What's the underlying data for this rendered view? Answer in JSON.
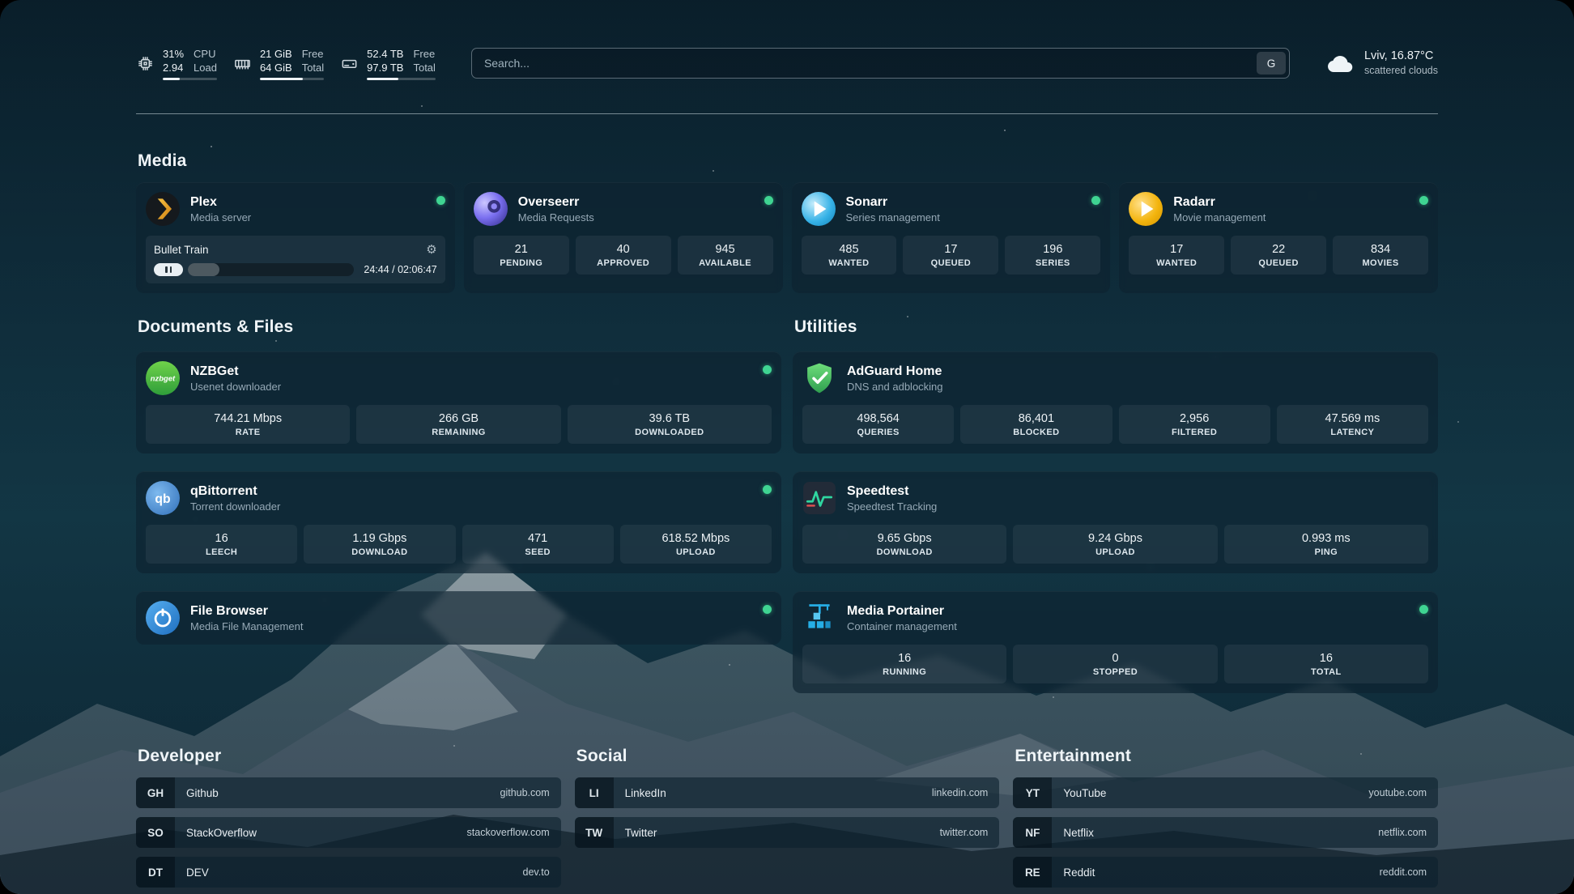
{
  "topbar": {
    "cpu": {
      "value_top": "31%",
      "value_bottom": "2.94",
      "label_top": "CPU",
      "label_bottom": "Load",
      "bar_percent": 31
    },
    "ram": {
      "value_top": "21 GiB",
      "value_bottom": "64 GiB",
      "label_top": "Free",
      "label_bottom": "Total",
      "bar_percent": 67
    },
    "disk": {
      "value_top": "52.4 TB",
      "value_bottom": "97.9 TB",
      "label_top": "Free",
      "label_bottom": "Total",
      "bar_percent": 46
    },
    "search": {
      "placeholder": "Search...",
      "provider": "G"
    },
    "weather": {
      "location": "Lviv, 16.87°C",
      "condition": "scattered clouds"
    }
  },
  "sections": {
    "media": {
      "title": "Media"
    },
    "documents": {
      "title": "Documents & Files"
    },
    "utilities": {
      "title": "Utilities"
    },
    "developer": {
      "title": "Developer"
    },
    "social": {
      "title": "Social"
    },
    "entertainment": {
      "title": "Entertainment"
    }
  },
  "media_cards": {
    "plex": {
      "name": "Plex",
      "desc": "Media server",
      "online": true,
      "now_playing": "Bullet Train",
      "time": "24:44 / 02:06:47",
      "progress_percent": 19
    },
    "overseerr": {
      "name": "Overseerr",
      "desc": "Media Requests",
      "online": true,
      "stats": [
        {
          "value": "21",
          "label": "PENDING"
        },
        {
          "value": "40",
          "label": "APPROVED"
        },
        {
          "value": "945",
          "label": "AVAILABLE"
        }
      ]
    },
    "sonarr": {
      "name": "Sonarr",
      "desc": "Series management",
      "online": true,
      "stats": [
        {
          "value": "485",
          "label": "WANTED"
        },
        {
          "value": "17",
          "label": "QUEUED"
        },
        {
          "value": "196",
          "label": "SERIES"
        }
      ]
    },
    "radarr": {
      "name": "Radarr",
      "desc": "Movie management",
      "online": true,
      "stats": [
        {
          "value": "17",
          "label": "WANTED"
        },
        {
          "value": "22",
          "label": "QUEUED"
        },
        {
          "value": "834",
          "label": "MOVIES"
        }
      ]
    }
  },
  "documents_cards": {
    "nzbget": {
      "name": "NZBGet",
      "desc": "Usenet downloader",
      "online": true,
      "stats": [
        {
          "value": "744.21 Mbps",
          "label": "RATE"
        },
        {
          "value": "266 GB",
          "label": "REMAINING"
        },
        {
          "value": "39.6 TB",
          "label": "DOWNLOADED"
        }
      ]
    },
    "qbittorrent": {
      "name": "qBittorrent",
      "desc": "Torrent downloader",
      "online": true,
      "stats": [
        {
          "value": "16",
          "label": "LEECH"
        },
        {
          "value": "1.19 Gbps",
          "label": "DOWNLOAD"
        },
        {
          "value": "471",
          "label": "SEED"
        },
        {
          "value": "618.52 Mbps",
          "label": "UPLOAD"
        }
      ]
    },
    "filebrowser": {
      "name": "File Browser",
      "desc": "Media File Management",
      "online": true
    }
  },
  "utilities_cards": {
    "adguard": {
      "name": "AdGuard Home",
      "desc": "DNS and adblocking",
      "stats": [
        {
          "value": "498,564",
          "label": "QUERIES"
        },
        {
          "value": "86,401",
          "label": "BLOCKED"
        },
        {
          "value": "2,956",
          "label": "FILTERED"
        },
        {
          "value": "47.569 ms",
          "label": "LATENCY"
        }
      ]
    },
    "speedtest": {
      "name": "Speedtest",
      "desc": "Speedtest Tracking",
      "stats": [
        {
          "value": "9.65 Gbps",
          "label": "DOWNLOAD"
        },
        {
          "value": "9.24 Gbps",
          "label": "UPLOAD"
        },
        {
          "value": "0.993 ms",
          "label": "PING"
        }
      ]
    },
    "portainer": {
      "name": "Media Portainer",
      "desc": "Container management",
      "online": true,
      "stats": [
        {
          "value": "16",
          "label": "RUNNING"
        },
        {
          "value": "0",
          "label": "STOPPED"
        },
        {
          "value": "16",
          "label": "TOTAL"
        }
      ]
    }
  },
  "bookmarks": {
    "developer": [
      {
        "abbr": "GH",
        "name": "Github",
        "url": "github.com"
      },
      {
        "abbr": "SO",
        "name": "StackOverflow",
        "url": "stackoverflow.com"
      },
      {
        "abbr": "DT",
        "name": "DEV",
        "url": "dev.to"
      }
    ],
    "social": [
      {
        "abbr": "LI",
        "name": "LinkedIn",
        "url": "linkedin.com"
      },
      {
        "abbr": "TW",
        "name": "Twitter",
        "url": "twitter.com"
      }
    ],
    "entertainment": [
      {
        "abbr": "YT",
        "name": "YouTube",
        "url": "youtube.com"
      },
      {
        "abbr": "NF",
        "name": "Netflix",
        "url": "netflix.com"
      },
      {
        "abbr": "RE",
        "name": "Reddit",
        "url": "reddit.com"
      }
    ]
  },
  "icons": {
    "gear": "⚙"
  },
  "colors": {
    "status_green": "#3fd492",
    "background_teal": "#113140"
  }
}
